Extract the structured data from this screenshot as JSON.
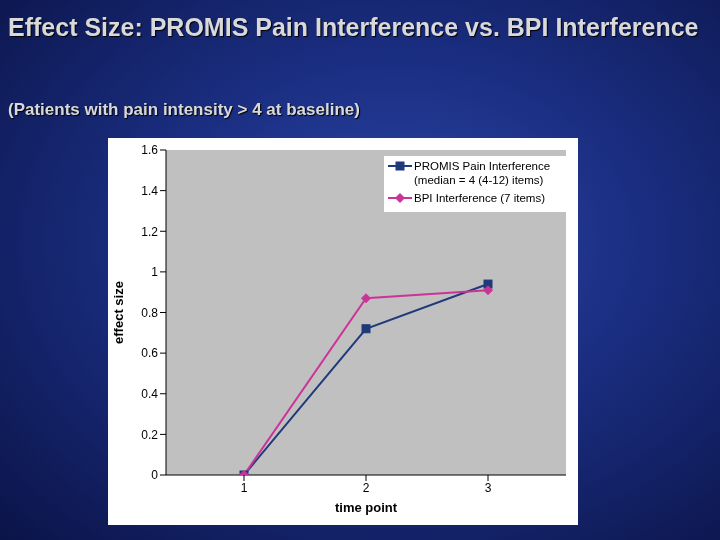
{
  "title": "Effect Size: PROMIS Pain Interference vs. BPI Interference",
  "subtitle": "(Patients with pain intensity > 4 at baseline)",
  "chart_data": {
    "type": "line",
    "x_label": "time point",
    "y_label": "effect size",
    "categories": [
      "1",
      "2",
      "3"
    ],
    "series": [
      {
        "name": "PROMIS Pain Interference (median = 4 (4-12) items)",
        "color": "#1f3a7a",
        "marker": "square",
        "values": [
          0,
          0.72,
          0.94
        ]
      },
      {
        "name": "BPI Interference (7 items)",
        "color": "#cc3399",
        "marker": "diamond",
        "values": [
          0,
          0.87,
          0.91
        ]
      }
    ],
    "ylim": [
      0,
      1.6
    ],
    "yticks": [
      0,
      0.2,
      0.4,
      0.6,
      0.8,
      1,
      1.2,
      1.4,
      1.6
    ],
    "grid": false,
    "legend": "upper right"
  }
}
